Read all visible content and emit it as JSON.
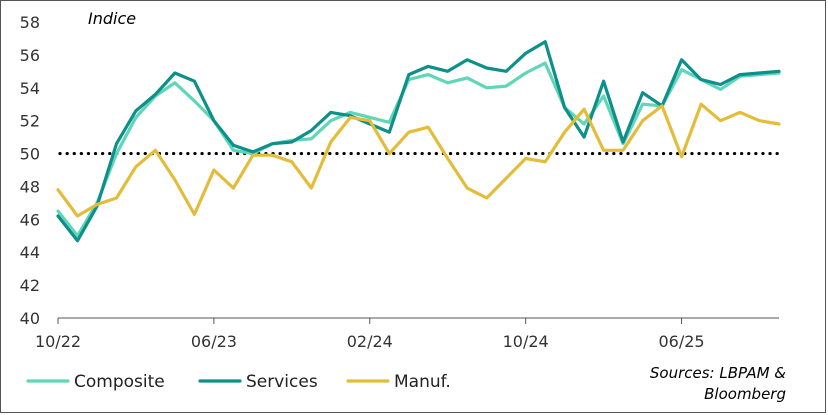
{
  "chart_data": {
    "type": "line",
    "ylabel": "Indice",
    "ylim": [
      40,
      58
    ],
    "yticks": [
      40,
      42,
      44,
      46,
      48,
      50,
      52,
      54,
      56,
      58
    ],
    "reference_line": 50,
    "x_tick_labels": [
      "10/22",
      "06/23",
      "02/24",
      "10/24",
      "06/25"
    ],
    "x_tick_index": [
      0,
      8,
      16,
      24,
      32
    ],
    "n_points": 38,
    "series": [
      {
        "name": "Composite",
        "color": "#5fd6b8",
        "values": [
          46.5,
          45.0,
          47.0,
          50.0,
          52.2,
          53.5,
          54.3,
          53.2,
          52.0,
          50.2,
          50.0,
          50.6,
          50.8,
          50.9,
          52.0,
          52.5,
          52.2,
          51.9,
          54.5,
          54.8,
          54.3,
          54.6,
          54.0,
          54.1,
          54.9,
          55.5,
          52.8,
          51.8,
          53.5,
          50.6,
          53.0,
          52.9,
          55.1,
          54.5,
          53.9,
          54.7,
          54.8,
          54.9
        ]
      },
      {
        "name": "Services",
        "color": "#0d8f8a",
        "values": [
          46.2,
          44.7,
          46.8,
          50.6,
          52.6,
          53.6,
          54.9,
          54.4,
          52.0,
          50.5,
          50.1,
          50.6,
          50.7,
          51.4,
          52.5,
          52.3,
          51.8,
          51.3,
          54.8,
          55.3,
          55.0,
          55.7,
          55.2,
          55.0,
          56.1,
          56.8,
          52.8,
          51.0,
          54.4,
          50.7,
          53.7,
          52.9,
          55.7,
          54.5,
          54.2,
          54.8,
          54.9,
          55.0
        ]
      },
      {
        "name": "Manuf.",
        "color": "#e3bd3a",
        "values": [
          47.8,
          46.2,
          46.9,
          47.3,
          49.2,
          50.2,
          48.4,
          46.3,
          49.0,
          47.9,
          49.9,
          49.9,
          49.5,
          47.9,
          50.7,
          52.2,
          52.0,
          50.0,
          51.3,
          51.6,
          49.7,
          47.9,
          47.3,
          48.5,
          49.7,
          49.5,
          51.3,
          52.7,
          50.2,
          50.2,
          52.0,
          52.9,
          49.8,
          53.0,
          52.0,
          52.5,
          52.0,
          51.8
        ]
      }
    ],
    "legend_position": "bottom-left",
    "source_lines": [
      "Sources: LBPAM &",
      "Bloomberg"
    ]
  }
}
